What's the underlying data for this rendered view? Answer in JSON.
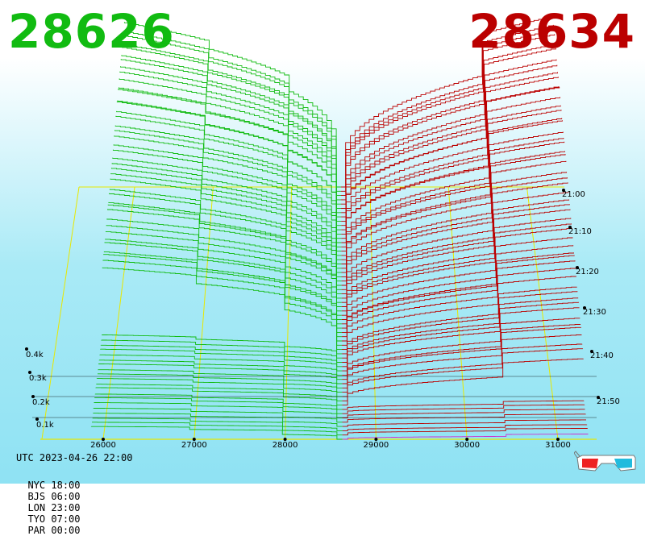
{
  "prices": {
    "bid": "28626",
    "ask": "28634"
  },
  "timestamps": {
    "utc": "UTC 2023-04-26 22:00",
    "cities": [
      {
        "name": "NYC",
        "time": "18:00"
      },
      {
        "name": "BJS",
        "time": "06:00"
      },
      {
        "name": "LON",
        "time": "23:00"
      },
      {
        "name": "TYO",
        "time": "07:00"
      },
      {
        "name": "PAR",
        "time": "00:00"
      }
    ]
  },
  "colors": {
    "bid": "#11bb11",
    "ask": "#bb0000",
    "grid": "#e8e800",
    "last_snapshot": "#cc33cc",
    "baseline": "#000000"
  },
  "icons": {
    "bottom_right": "3d-glasses-icon"
  },
  "chart_data": {
    "type": "area",
    "x": {
      "min": 25850,
      "max": 31350,
      "ticks": [
        26000,
        27000,
        28000,
        29000,
        30000,
        31000
      ]
    },
    "depth_ticks": [
      "0.1k",
      "0.2k",
      "0.3k",
      "0.4k"
    ],
    "time_ticks": [
      "21:00",
      "21:10",
      "21:20",
      "21:30",
      "21:40",
      "21:50"
    ],
    "snapshots": 60,
    "series": [
      {
        "side": "bid",
        "price": 28626
      },
      {
        "side": "ask",
        "price": 28634
      }
    ]
  }
}
